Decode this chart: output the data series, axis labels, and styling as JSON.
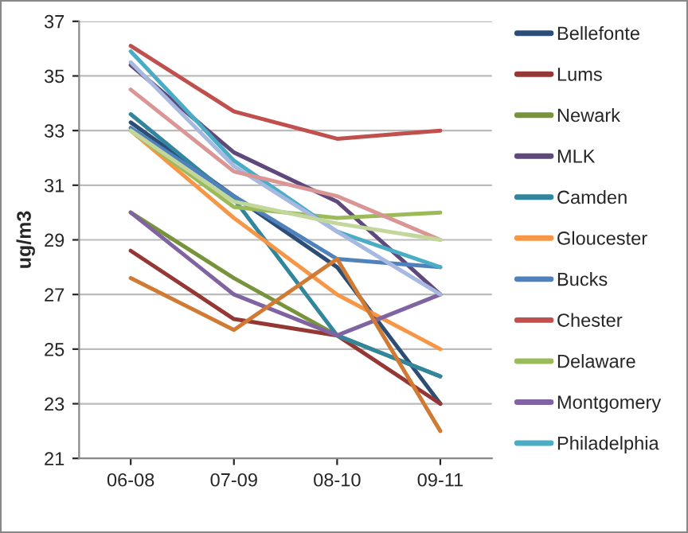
{
  "chart_data": {
    "type": "line",
    "ylabel": "ug/m3",
    "categories": [
      "06-08",
      "07-09",
      "08-10",
      "09-11"
    ],
    "ylim": [
      21,
      37
    ],
    "yticks": [
      21,
      23,
      25,
      27,
      29,
      31,
      33,
      35,
      37
    ],
    "grid": "y",
    "legend": "right",
    "marker": "none",
    "line_style": "solid",
    "series": [
      {
        "name": "Bellefonte",
        "color": "#2c4d75",
        "values": [
          33.3,
          30.6,
          28.0,
          23.0
        ]
      },
      {
        "name": "Lums",
        "color": "#953735",
        "values": [
          28.6,
          26.1,
          25.5,
          23.0
        ]
      },
      {
        "name": "Newark",
        "color": "#77933c",
        "values": [
          30.0,
          27.6,
          25.5,
          24.0
        ]
      },
      {
        "name": "MLK",
        "color": "#5f497a",
        "values": [
          35.4,
          32.2,
          30.4,
          27.0
        ]
      },
      {
        "name": "Camden",
        "color": "#31859c",
        "values": [
          33.6,
          30.5,
          25.5,
          24.0
        ]
      },
      {
        "name": "Gloucester",
        "color": "#f79646",
        "values": [
          33.0,
          29.8,
          27.0,
          25.0
        ]
      },
      {
        "name": "Bucks",
        "color": "#4f81bd",
        "values": [
          33.1,
          30.6,
          28.3,
          28.0
        ]
      },
      {
        "name": "Chester",
        "color": "#c0504d",
        "values": [
          36.1,
          33.7,
          32.7,
          33.0
        ]
      },
      {
        "name": "Delaware",
        "color": "#9bbb59",
        "values": [
          33.0,
          30.2,
          29.8,
          30.0
        ]
      },
      {
        "name": "Montgomery",
        "color": "#8064a2",
        "values": [
          30.0,
          27.0,
          25.5,
          27.0
        ]
      },
      {
        "name": "Philadelphia",
        "color": "#4bacc6",
        "values": [
          35.9,
          31.9,
          29.3,
          28.0
        ]
      },
      {
        "color": "#d07a33",
        "values": [
          27.6,
          25.7,
          28.3,
          22.0
        ]
      },
      {
        "color": "#a7b9e0",
        "values": [
          35.5,
          31.7,
          29.3,
          27.0
        ]
      },
      {
        "color": "#d99694",
        "values": [
          34.5,
          31.5,
          30.6,
          29.0
        ]
      },
      {
        "color": "#c3d69b",
        "values": [
          33.0,
          30.4,
          29.6,
          29.0
        ]
      }
    ]
  }
}
